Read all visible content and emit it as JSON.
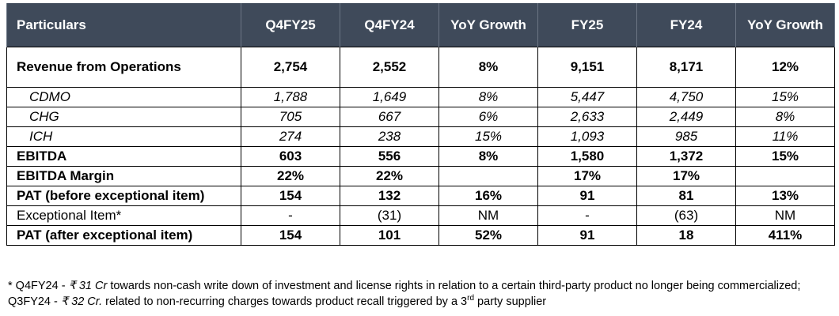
{
  "table": {
    "headers": [
      "Particulars",
      "Q4FY25",
      "Q4FY24",
      "YoY Growth",
      "FY25",
      "FY24",
      "YoY Growth"
    ],
    "rows": [
      {
        "style": "bold big",
        "cells": [
          "Revenue from Operations",
          "2,754",
          "2,552",
          "8%",
          "9,151",
          "8,171",
          "12%"
        ]
      },
      {
        "style": "sub",
        "cells": [
          "CDMO",
          "1,788",
          "1,649",
          "8%",
          "5,447",
          "4,750",
          "15%"
        ]
      },
      {
        "style": "sub",
        "cells": [
          "CHG",
          "705",
          "667",
          "6%",
          "2,633",
          "2,449",
          "8%"
        ]
      },
      {
        "style": "sub",
        "cells": [
          "ICH",
          "274",
          "238",
          "15%",
          "1,093",
          "985",
          "11%"
        ]
      },
      {
        "style": "bold",
        "cells": [
          "EBITDA",
          "603",
          "556",
          "8%",
          "1,580",
          "1,372",
          "15%"
        ]
      },
      {
        "style": "bold",
        "cells": [
          "EBITDA Margin",
          "22%",
          "22%",
          "",
          "17%",
          "17%",
          ""
        ]
      },
      {
        "style": "bold",
        "cells": [
          "PAT (before exceptional item)",
          "154",
          "132",
          "16%",
          "91",
          "81",
          "13%"
        ]
      },
      {
        "style": "normal",
        "cells": [
          "Exceptional Item*",
          "-",
          "(31)",
          "NM",
          "-",
          "(63)",
          "NM"
        ]
      },
      {
        "style": "bold",
        "cells": [
          "PAT (after exceptional item)",
          "154",
          "101",
          "52%",
          "91",
          "18",
          "411%"
        ]
      }
    ]
  },
  "footnote": {
    "star": "*",
    "p1": " Q4FY24 - ",
    "amt1": "₹ 31 Cr",
    "p2": " towards non-cash write down of investment and license rights in relation to a certain third-party product no longer being commercialized; Q3FY24 - ",
    "amt2": "₹ 32 Cr.",
    "p3": " related to non-recurring charges towards product recall triggered by a 3",
    "sup": "rd",
    "p4": " party supplier"
  }
}
